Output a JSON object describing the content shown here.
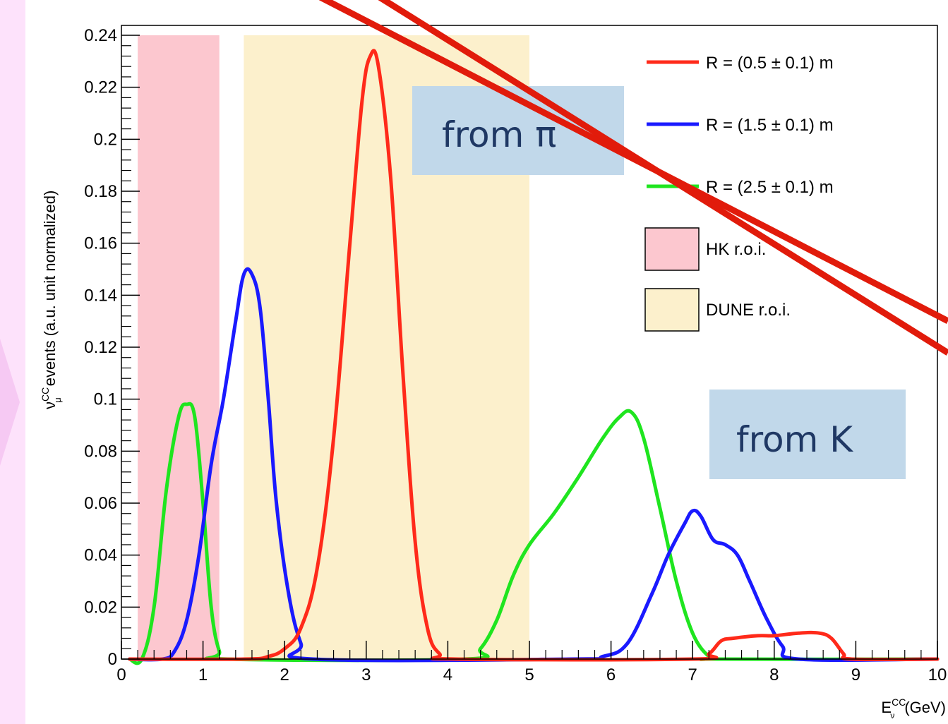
{
  "chart_data": {
    "type": "line",
    "title": "",
    "xlabel": "E_ν^CC (GeV)",
    "xlabel_parts": {
      "base": "E",
      "sub": "ν",
      "sup": "CC",
      "unit": "(GeV)"
    },
    "ylabel": "ν_μ^CC events (a.u. unit normalized)",
    "ylabel_parts": {
      "base": "ν",
      "sub": "μ",
      "sup": "CC",
      "rest": "events (a.u. unit normalized)"
    },
    "xlim": [
      0,
      10
    ],
    "ylim": [
      0,
      0.24
    ],
    "x_ticks": [
      "0",
      "1",
      "2",
      "3",
      "4",
      "5",
      "6",
      "7",
      "8",
      "9",
      "10"
    ],
    "y_ticks": [
      "0",
      "0.02",
      "0.04",
      "0.06",
      "0.08",
      "0.1",
      "0.12",
      "0.14",
      "0.16",
      "0.18",
      "0.2",
      "0.22",
      "0.24"
    ],
    "grid": false,
    "legend_position": "top-right",
    "regions": [
      {
        "name": "HK r.o.i.",
        "x_range": [
          0.2,
          1.2
        ],
        "color": "#fcc7cf"
      },
      {
        "name": "DUNE r.o.i.",
        "x_range": [
          1.5,
          5.0
        ],
        "color": "#fcf0cc"
      }
    ],
    "series": [
      {
        "name": "R = (0.5 ± 0.1) m",
        "color": "#ff2a1a",
        "points": [
          [
            0.1,
            0
          ],
          [
            1.5,
            0.0
          ],
          [
            1.8,
            0.001
          ],
          [
            2.0,
            0.004
          ],
          [
            2.2,
            0.012
          ],
          [
            2.4,
            0.035
          ],
          [
            2.6,
            0.085
          ],
          [
            2.8,
            0.16
          ],
          [
            2.95,
            0.215
          ],
          [
            3.05,
            0.232
          ],
          [
            3.15,
            0.228
          ],
          [
            3.3,
            0.185
          ],
          [
            3.45,
            0.11
          ],
          [
            3.6,
            0.045
          ],
          [
            3.75,
            0.012
          ],
          [
            3.9,
            0.002
          ],
          [
            4.1,
            0.0
          ],
          [
            7.0,
            0.0
          ],
          [
            7.2,
            0.002
          ],
          [
            7.35,
            0.007
          ],
          [
            7.5,
            0.008
          ],
          [
            7.8,
            0.009
          ],
          [
            8.0,
            0.009
          ],
          [
            8.3,
            0.01
          ],
          [
            8.55,
            0.01
          ],
          [
            8.7,
            0.008
          ],
          [
            8.85,
            0.002
          ],
          [
            8.95,
            0.0
          ],
          [
            10.0,
            0.0
          ]
        ]
      },
      {
        "name": "R = (1.5 ± 0.1) m",
        "color": "#1a1aff",
        "points": [
          [
            0.1,
            0
          ],
          [
            0.5,
            0.0
          ],
          [
            0.65,
            0.003
          ],
          [
            0.8,
            0.015
          ],
          [
            0.95,
            0.04
          ],
          [
            1.1,
            0.075
          ],
          [
            1.25,
            0.1
          ],
          [
            1.4,
            0.13
          ],
          [
            1.5,
            0.148
          ],
          [
            1.6,
            0.148
          ],
          [
            1.7,
            0.135
          ],
          [
            1.8,
            0.1
          ],
          [
            1.9,
            0.06
          ],
          [
            2.05,
            0.025
          ],
          [
            2.2,
            0.006
          ],
          [
            2.35,
            0.0
          ],
          [
            5.5,
            0.0
          ],
          [
            5.9,
            0.001
          ],
          [
            6.2,
            0.006
          ],
          [
            6.5,
            0.025
          ],
          [
            6.7,
            0.04
          ],
          [
            6.9,
            0.052
          ],
          [
            7.0,
            0.057
          ],
          [
            7.1,
            0.055
          ],
          [
            7.25,
            0.046
          ],
          [
            7.4,
            0.044
          ],
          [
            7.55,
            0.04
          ],
          [
            7.7,
            0.03
          ],
          [
            7.9,
            0.016
          ],
          [
            8.1,
            0.005
          ],
          [
            8.3,
            0.0
          ],
          [
            10.0,
            0.0
          ]
        ]
      },
      {
        "name": "R = (2.5 ± 0.1) m",
        "color": "#1fe51f",
        "points": [
          [
            0.1,
            0
          ],
          [
            0.25,
            0.0
          ],
          [
            0.4,
            0.02
          ],
          [
            0.55,
            0.065
          ],
          [
            0.7,
            0.093
          ],
          [
            0.8,
            0.098
          ],
          [
            0.9,
            0.093
          ],
          [
            1.0,
            0.06
          ],
          [
            1.1,
            0.02
          ],
          [
            1.2,
            0.003
          ],
          [
            1.3,
            0.0
          ],
          [
            4.2,
            0.0
          ],
          [
            4.4,
            0.004
          ],
          [
            4.6,
            0.015
          ],
          [
            4.8,
            0.032
          ],
          [
            5.0,
            0.044
          ],
          [
            5.3,
            0.056
          ],
          [
            5.6,
            0.07
          ],
          [
            5.9,
            0.085
          ],
          [
            6.1,
            0.093
          ],
          [
            6.25,
            0.095
          ],
          [
            6.4,
            0.085
          ],
          [
            6.6,
            0.058
          ],
          [
            6.8,
            0.03
          ],
          [
            7.0,
            0.01
          ],
          [
            7.2,
            0.001
          ],
          [
            7.35,
            0.0
          ],
          [
            10.0,
            0.0
          ]
        ]
      }
    ],
    "annotations": [
      {
        "text": "from π"
      },
      {
        "text": "from K"
      }
    ]
  },
  "colors": {
    "slide_background": "#fde2fb",
    "annotation_box": "#c1d8ea",
    "annotation_text": "#1f3864",
    "strike_lines": "#e11b0b"
  },
  "overlay": {
    "strike_lines_color": "#e11b0b"
  }
}
